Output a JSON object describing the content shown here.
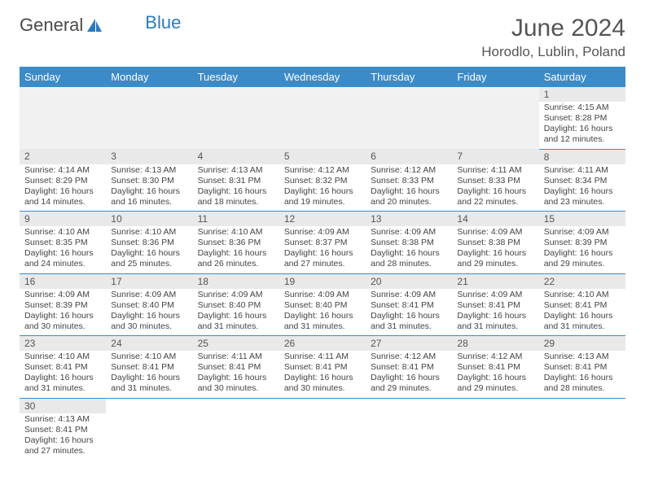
{
  "brand": {
    "part1": "General",
    "part2": "Blue"
  },
  "title": "June 2024",
  "location": "Horodlo, Lublin, Poland",
  "colors": {
    "header_bg": "#3b8bc9",
    "header_fg": "#ffffff",
    "daynum_bg": "#e9e9e9",
    "rule": "#3b8bc9",
    "text": "#444444",
    "brand_gray": "#4a4a4a",
    "brand_blue": "#2a7bbf"
  },
  "weekdays": [
    "Sunday",
    "Monday",
    "Tuesday",
    "Wednesday",
    "Thursday",
    "Friday",
    "Saturday"
  ],
  "weeks": [
    [
      null,
      null,
      null,
      null,
      null,
      null,
      {
        "n": "1",
        "sr": "Sunrise: 4:15 AM",
        "ss": "Sunset: 8:28 PM",
        "d1": "Daylight: 16 hours",
        "d2": "and 12 minutes."
      }
    ],
    [
      {
        "n": "2",
        "sr": "Sunrise: 4:14 AM",
        "ss": "Sunset: 8:29 PM",
        "d1": "Daylight: 16 hours",
        "d2": "and 14 minutes."
      },
      {
        "n": "3",
        "sr": "Sunrise: 4:13 AM",
        "ss": "Sunset: 8:30 PM",
        "d1": "Daylight: 16 hours",
        "d2": "and 16 minutes."
      },
      {
        "n": "4",
        "sr": "Sunrise: 4:13 AM",
        "ss": "Sunset: 8:31 PM",
        "d1": "Daylight: 16 hours",
        "d2": "and 18 minutes."
      },
      {
        "n": "5",
        "sr": "Sunrise: 4:12 AM",
        "ss": "Sunset: 8:32 PM",
        "d1": "Daylight: 16 hours",
        "d2": "and 19 minutes."
      },
      {
        "n": "6",
        "sr": "Sunrise: 4:12 AM",
        "ss": "Sunset: 8:33 PM",
        "d1": "Daylight: 16 hours",
        "d2": "and 20 minutes."
      },
      {
        "n": "7",
        "sr": "Sunrise: 4:11 AM",
        "ss": "Sunset: 8:33 PM",
        "d1": "Daylight: 16 hours",
        "d2": "and 22 minutes."
      },
      {
        "n": "8",
        "sr": "Sunrise: 4:11 AM",
        "ss": "Sunset: 8:34 PM",
        "d1": "Daylight: 16 hours",
        "d2": "and 23 minutes."
      }
    ],
    [
      {
        "n": "9",
        "sr": "Sunrise: 4:10 AM",
        "ss": "Sunset: 8:35 PM",
        "d1": "Daylight: 16 hours",
        "d2": "and 24 minutes."
      },
      {
        "n": "10",
        "sr": "Sunrise: 4:10 AM",
        "ss": "Sunset: 8:36 PM",
        "d1": "Daylight: 16 hours",
        "d2": "and 25 minutes."
      },
      {
        "n": "11",
        "sr": "Sunrise: 4:10 AM",
        "ss": "Sunset: 8:36 PM",
        "d1": "Daylight: 16 hours",
        "d2": "and 26 minutes."
      },
      {
        "n": "12",
        "sr": "Sunrise: 4:09 AM",
        "ss": "Sunset: 8:37 PM",
        "d1": "Daylight: 16 hours",
        "d2": "and 27 minutes."
      },
      {
        "n": "13",
        "sr": "Sunrise: 4:09 AM",
        "ss": "Sunset: 8:38 PM",
        "d1": "Daylight: 16 hours",
        "d2": "and 28 minutes."
      },
      {
        "n": "14",
        "sr": "Sunrise: 4:09 AM",
        "ss": "Sunset: 8:38 PM",
        "d1": "Daylight: 16 hours",
        "d2": "and 29 minutes."
      },
      {
        "n": "15",
        "sr": "Sunrise: 4:09 AM",
        "ss": "Sunset: 8:39 PM",
        "d1": "Daylight: 16 hours",
        "d2": "and 29 minutes."
      }
    ],
    [
      {
        "n": "16",
        "sr": "Sunrise: 4:09 AM",
        "ss": "Sunset: 8:39 PM",
        "d1": "Daylight: 16 hours",
        "d2": "and 30 minutes."
      },
      {
        "n": "17",
        "sr": "Sunrise: 4:09 AM",
        "ss": "Sunset: 8:40 PM",
        "d1": "Daylight: 16 hours",
        "d2": "and 30 minutes."
      },
      {
        "n": "18",
        "sr": "Sunrise: 4:09 AM",
        "ss": "Sunset: 8:40 PM",
        "d1": "Daylight: 16 hours",
        "d2": "and 31 minutes."
      },
      {
        "n": "19",
        "sr": "Sunrise: 4:09 AM",
        "ss": "Sunset: 8:40 PM",
        "d1": "Daylight: 16 hours",
        "d2": "and 31 minutes."
      },
      {
        "n": "20",
        "sr": "Sunrise: 4:09 AM",
        "ss": "Sunset: 8:41 PM",
        "d1": "Daylight: 16 hours",
        "d2": "and 31 minutes."
      },
      {
        "n": "21",
        "sr": "Sunrise: 4:09 AM",
        "ss": "Sunset: 8:41 PM",
        "d1": "Daylight: 16 hours",
        "d2": "and 31 minutes."
      },
      {
        "n": "22",
        "sr": "Sunrise: 4:10 AM",
        "ss": "Sunset: 8:41 PM",
        "d1": "Daylight: 16 hours",
        "d2": "and 31 minutes."
      }
    ],
    [
      {
        "n": "23",
        "sr": "Sunrise: 4:10 AM",
        "ss": "Sunset: 8:41 PM",
        "d1": "Daylight: 16 hours",
        "d2": "and 31 minutes."
      },
      {
        "n": "24",
        "sr": "Sunrise: 4:10 AM",
        "ss": "Sunset: 8:41 PM",
        "d1": "Daylight: 16 hours",
        "d2": "and 31 minutes."
      },
      {
        "n": "25",
        "sr": "Sunrise: 4:11 AM",
        "ss": "Sunset: 8:41 PM",
        "d1": "Daylight: 16 hours",
        "d2": "and 30 minutes."
      },
      {
        "n": "26",
        "sr": "Sunrise: 4:11 AM",
        "ss": "Sunset: 8:41 PM",
        "d1": "Daylight: 16 hours",
        "d2": "and 30 minutes."
      },
      {
        "n": "27",
        "sr": "Sunrise: 4:12 AM",
        "ss": "Sunset: 8:41 PM",
        "d1": "Daylight: 16 hours",
        "d2": "and 29 minutes."
      },
      {
        "n": "28",
        "sr": "Sunrise: 4:12 AM",
        "ss": "Sunset: 8:41 PM",
        "d1": "Daylight: 16 hours",
        "d2": "and 29 minutes."
      },
      {
        "n": "29",
        "sr": "Sunrise: 4:13 AM",
        "ss": "Sunset: 8:41 PM",
        "d1": "Daylight: 16 hours",
        "d2": "and 28 minutes."
      }
    ],
    [
      {
        "n": "30",
        "sr": "Sunrise: 4:13 AM",
        "ss": "Sunset: 8:41 PM",
        "d1": "Daylight: 16 hours",
        "d2": "and 27 minutes."
      },
      null,
      null,
      null,
      null,
      null,
      null
    ]
  ]
}
